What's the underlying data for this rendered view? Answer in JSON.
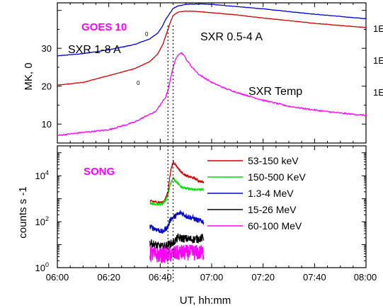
{
  "chart_data": [
    {
      "type": "line",
      "panel": "top",
      "title": "GOES 10",
      "ylabel": "MK, 0",
      "yticks": [
        "10",
        "20",
        "30"
      ],
      "ylim": [
        5,
        42
      ],
      "xlim": [
        "06:00",
        "08:00"
      ],
      "grid": false,
      "annotations": [
        "SXR 1-8 A",
        "SXR 0.5-4 A",
        "SXR Temp",
        "0",
        "0"
      ],
      "right_tick_labels": [
        "1E",
        "1E",
        "1E"
      ],
      "series": [
        {
          "name": "SXR 0.5-4 A",
          "color": "#0000cc",
          "x": [
            "06:00",
            "06:10",
            "06:20",
            "06:30",
            "06:36",
            "06:39",
            "06:41",
            "06:42",
            "06:43",
            "06:44",
            "06:45",
            "06:47",
            "06:50",
            "06:55",
            "07:00",
            "07:10",
            "07:20",
            "07:30",
            "07:40",
            "07:50",
            "08:00"
          ],
          "y": [
            28,
            28.6,
            29.6,
            31,
            32.5,
            34,
            36,
            37.5,
            38.5,
            39.5,
            40.5,
            41.2,
            41.6,
            41.7,
            41.6,
            41,
            40.4,
            39.7,
            39,
            38.4,
            37.8
          ]
        },
        {
          "name": "SXR 1-8 A",
          "color": "#cc0000",
          "x": [
            "06:00",
            "06:10",
            "06:20",
            "06:30",
            "06:36",
            "06:39",
            "06:41",
            "06:42",
            "06:43",
            "06:44",
            "06:45",
            "06:47",
            "06:50",
            "06:55",
            "07:00",
            "07:10",
            "07:20",
            "07:30",
            "07:40",
            "07:50",
            "08:00"
          ],
          "y": [
            20.3,
            21,
            22.8,
            24.6,
            26.5,
            28.5,
            31,
            33,
            35,
            37,
            38.6,
            39.6,
            39.8,
            39.7,
            39.4,
            38.8,
            38,
            37.3,
            36.6,
            36,
            35.5
          ]
        },
        {
          "name": "SXR Temp",
          "color": "#ff00ff",
          "x": [
            "06:00",
            "06:10",
            "06:20",
            "06:30",
            "06:35",
            "06:38",
            "06:40",
            "06:41",
            "06:42",
            "06:43",
            "06:44",
            "06:45",
            "06:46",
            "06:47",
            "06:48",
            "06:49",
            "06:50",
            "06:52",
            "06:55",
            "07:00",
            "07:05",
            "07:10",
            "07:20",
            "07:30",
            "07:40",
            "07:50",
            "08:00"
          ],
          "y": [
            7,
            7.8,
            8.5,
            10.5,
            12.3,
            13.2,
            15,
            16,
            17,
            19,
            22,
            25,
            27,
            28.4,
            28.8,
            28.4,
            27.2,
            25.3,
            23.1,
            21,
            19.5,
            18.3,
            16.3,
            14.7,
            13.7,
            12.9,
            12.3
          ]
        }
      ]
    },
    {
      "type": "line",
      "panel": "bottom",
      "title": "SONG",
      "xlabel": "UT, hh:mm",
      "ylabel": "counts s -1",
      "y_scale": "log",
      "ylim": [
        1,
        200000
      ],
      "yticks": [
        "10^0",
        "10^2",
        "10^4"
      ],
      "xticks": [
        "06:00",
        "06:20",
        "06:40",
        "07:00",
        "07:20",
        "07:40",
        "08:00"
      ],
      "xlim": [
        "06:00",
        "08:00"
      ],
      "reference_lines": [
        "06:43",
        "06:45"
      ],
      "grid": false,
      "legend_position": "right",
      "series": [
        {
          "name": "53-150 keV",
          "color": "#cc0000",
          "x": [
            "06:36",
            "06:39",
            "06:41",
            "06:42",
            "06:43",
            "06:44",
            "06:45",
            "06:46",
            "06:48",
            "06:50",
            "06:53",
            "06:55",
            "06:57"
          ],
          "y": [
            800,
            700,
            700,
            1000,
            2000,
            15000,
            40000,
            30000,
            15000,
            10000,
            8000,
            6000,
            5000
          ]
        },
        {
          "name": "150-500 KeV",
          "color": "#00dd00",
          "x": [
            "06:36",
            "06:39",
            "06:41",
            "06:42",
            "06:43",
            "06:44",
            "06:45",
            "06:46",
            "06:48",
            "06:50",
            "06:53",
            "06:55",
            "06:57"
          ],
          "y": [
            650,
            550,
            600,
            800,
            1500,
            4500,
            8000,
            6000,
            3500,
            2800,
            2500,
            2500,
            2500
          ]
        },
        {
          "name": "1.3-4 MeV",
          "color": "#0000cc",
          "x": [
            "06:36",
            "06:39",
            "06:41",
            "06:42",
            "06:43",
            "06:44",
            "06:46",
            "06:48",
            "06:50",
            "06:53",
            "06:55",
            "06:57"
          ],
          "y": [
            60,
            45,
            35,
            50,
            60,
            130,
            180,
            250,
            180,
            140,
            110,
            100
          ]
        },
        {
          "name": "15-26 MeV",
          "color": "#000000",
          "x": [
            "06:36",
            "06:39",
            "06:41",
            "06:43",
            "06:45",
            "06:47",
            "06:50",
            "06:53",
            "06:57"
          ],
          "y": [
            12,
            9,
            8,
            10,
            12,
            20,
            18,
            17,
            20
          ]
        },
        {
          "name": "60-100 MeV",
          "color": "#ff00ff",
          "x": [
            "06:36",
            "06:39",
            "06:42",
            "06:45",
            "06:48",
            "06:51",
            "06:54",
            "06:57"
          ],
          "y": [
            4,
            3.5,
            3.5,
            4,
            4.5,
            4.5,
            4.5,
            4.5
          ]
        }
      ]
    }
  ]
}
